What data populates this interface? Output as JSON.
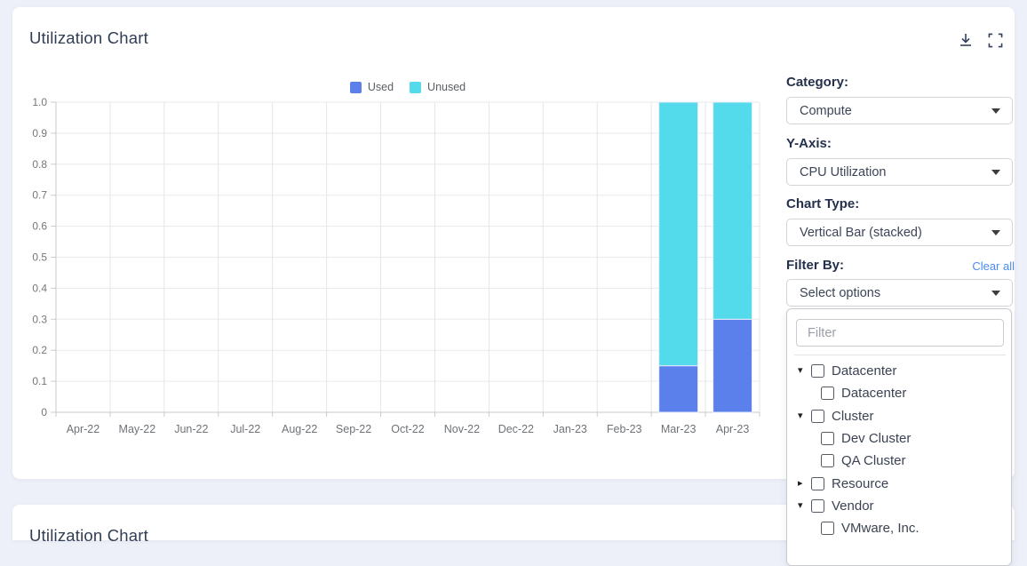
{
  "card": {
    "title": "Utilization Chart"
  },
  "second_card": {
    "title": "Utilization Chart"
  },
  "colors": {
    "used": "#5b80ec",
    "unused": "#53dbec",
    "link": "#4a8cf7",
    "title_text": "#313d55",
    "page_background": "#edf0f8"
  },
  "icons": {
    "caret_down": "▾",
    "caret_right": "▸"
  },
  "chart_data": {
    "type": "bar",
    "stacked": true,
    "categories": [
      "Apr-22",
      "May-22",
      "Jun-22",
      "Jul-22",
      "Aug-22",
      "Sep-22",
      "Oct-22",
      "Nov-22",
      "Dec-22",
      "Jan-23",
      "Feb-23",
      "Mar-23",
      "Apr-23"
    ],
    "series": [
      {
        "name": "Used",
        "color": "#5b80ec",
        "values": [
          0,
          0,
          0,
          0,
          0,
          0,
          0,
          0,
          0,
          0,
          0,
          0.15,
          0.3
        ]
      },
      {
        "name": "Unused",
        "color": "#53dbec",
        "values": [
          0,
          0,
          0,
          0,
          0,
          0,
          0,
          0,
          0,
          0,
          0,
          0.85,
          0.7
        ]
      }
    ],
    "title": "Utilization Chart",
    "xlabel": "",
    "ylabel": "",
    "ylim": [
      0,
      1.0
    ],
    "ytick_step": 0.1,
    "ytick_labels": [
      "0",
      "0.1",
      "0.2",
      "0.3",
      "0.4",
      "0.5",
      "0.6",
      "0.7",
      "0.8",
      "0.9",
      "1.0"
    ],
    "grid": true,
    "legend_position": "top-center"
  },
  "controls": {
    "category": {
      "label": "Category:",
      "value": "Compute"
    },
    "y_axis": {
      "label": "Y-Axis:",
      "value": "CPU Utilization"
    },
    "chart_type": {
      "label": "Chart Type:",
      "value": "Vertical Bar (stacked)"
    },
    "filter_by": {
      "label": "Filter By:",
      "value": "Select options",
      "clear_label": "Clear all"
    }
  },
  "filter_panel": {
    "search_placeholder": "Filter",
    "tree": [
      {
        "label": "Datacenter",
        "expanded": true,
        "checked": false,
        "children": [
          "Datacenter"
        ]
      },
      {
        "label": "Cluster",
        "expanded": true,
        "checked": false,
        "children": [
          "Dev Cluster",
          "QA Cluster"
        ]
      },
      {
        "label": "Resource",
        "expanded": false,
        "checked": false,
        "children": []
      },
      {
        "label": "Vendor",
        "expanded": true,
        "checked": false,
        "children": [
          "VMware, Inc."
        ]
      }
    ]
  }
}
